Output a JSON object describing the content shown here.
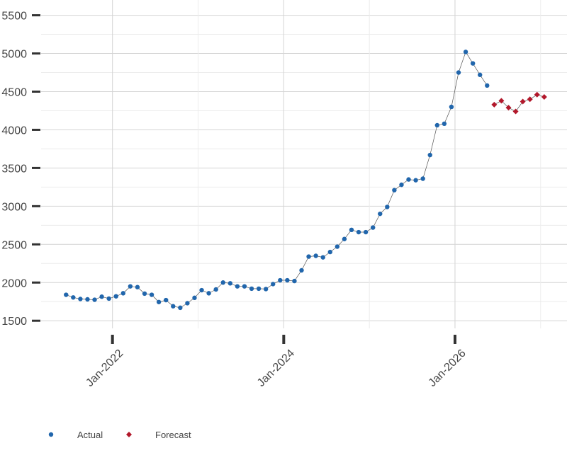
{
  "chart_data": {
    "type": "line",
    "x_actual": [
      "Jun-2021",
      "Jul-2021",
      "Aug-2021",
      "Sep-2021",
      "Oct-2021",
      "Nov-2021",
      "Dec-2021",
      "Jan-2022",
      "Feb-2022",
      "Mar-2022",
      "Apr-2022",
      "May-2022",
      "Jun-2022",
      "Jul-2022",
      "Aug-2022",
      "Sep-2022",
      "Oct-2022",
      "Nov-2022",
      "Dec-2022",
      "Jan-2023",
      "Feb-2023",
      "Mar-2023",
      "Apr-2023",
      "May-2023",
      "Jun-2023",
      "Jul-2023",
      "Aug-2023",
      "Sep-2023",
      "Oct-2023",
      "Nov-2023",
      "Dec-2023",
      "Jan-2024",
      "Feb-2024",
      "Mar-2024",
      "Apr-2024",
      "May-2024",
      "Jun-2024",
      "Jul-2024",
      "Aug-2024",
      "Sep-2024",
      "Oct-2024",
      "Nov-2024",
      "Dec-2024",
      "Jan-2025",
      "Feb-2025",
      "Mar-2025",
      "Apr-2025",
      "May-2025",
      "Jun-2025",
      "Jul-2025",
      "Aug-2025",
      "Sep-2025",
      "Oct-2025",
      "Nov-2025",
      "Dec-2025",
      "Jan-2026",
      "Feb-2026",
      "Mar-2026",
      "Apr-2026",
      "May-2026"
    ],
    "x_forecast": [
      "Jun-2026",
      "Jul-2026",
      "Aug-2026",
      "Sep-2026",
      "Oct-2026",
      "Nov-2026",
      "Dec-2026",
      "Jan-2027"
    ],
    "series": [
      {
        "name": "Actual",
        "color": "#2166ac",
        "x_key": "x_actual",
        "values": [
          1840,
          1805,
          1785,
          1780,
          1775,
          1815,
          1790,
          1820,
          1860,
          1950,
          1940,
          1855,
          1840,
          1745,
          1770,
          1690,
          1670,
          1730,
          1800,
          1900,
          1860,
          1910,
          2000,
          1990,
          1950,
          1950,
          1920,
          1920,
          1915,
          1980,
          2030,
          2030,
          2020,
          2160,
          2340,
          2350,
          2330,
          2400,
          2470,
          2570,
          2690,
          2660,
          2660,
          2720,
          2900,
          2990,
          3210,
          3280,
          3350,
          3340,
          3360,
          3670,
          4060,
          4080,
          4300,
          4750,
          5020,
          4870,
          4720,
          4580
        ]
      },
      {
        "name": "Forecast",
        "color": "#b2182b",
        "x_key": "x_forecast",
        "values": [
          4330,
          4380,
          4290,
          4240,
          4370,
          4400,
          4460,
          4430
        ]
      }
    ],
    "xlim": [
      "Mar-2021",
      "Apr-2027"
    ],
    "xticks": [
      "Jan-2022",
      "Jan-2024",
      "Jan-2026"
    ],
    "ylim": [
      1400,
      5700
    ],
    "yticks": [
      1500,
      2000,
      2500,
      3000,
      3500,
      4000,
      4500,
      5000,
      5500
    ],
    "grid": true,
    "legend": "bottom-left"
  }
}
